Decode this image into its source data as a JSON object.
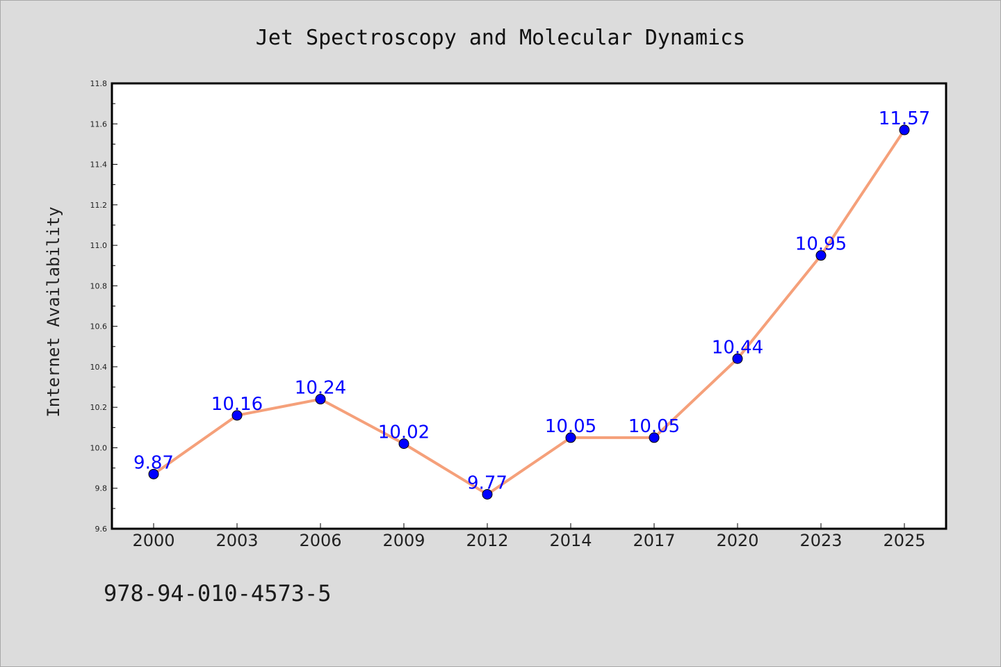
{
  "chart_data": {
    "type": "line",
    "title": "Jet Spectroscopy and Molecular Dynamics",
    "xlabel": "",
    "ylabel": "Internet Availability",
    "categories": [
      "2000",
      "2003",
      "2006",
      "2009",
      "2012",
      "2014",
      "2017",
      "2020",
      "2023",
      "2025"
    ],
    "series": [
      {
        "values": [
          9.87,
          10.16,
          10.24,
          10.02,
          9.77,
          10.05,
          10.05,
          10.44,
          10.95,
          11.57
        ],
        "line_color": "#f5a07a",
        "marker_color": "#0000ff"
      }
    ],
    "data_labels": [
      "9.87",
      "10.16",
      "10.24",
      "10.02",
      "9.77",
      "10.05",
      "10.05",
      "10.44",
      "10.95",
      "11.57"
    ],
    "ylim": [
      9.6,
      11.8
    ],
    "yticks": [
      "9.6",
      "9.8",
      "10.0",
      "10.2",
      "10.4",
      "10.6",
      "10.8",
      "11.0",
      "11.2",
      "11.4",
      "11.6",
      "11.8"
    ],
    "grid": false,
    "legend": "none"
  },
  "footer": {
    "isbn": "978-94-010-4573-5"
  },
  "colors": {
    "background": "#dcdcdc",
    "plot_area": "#ffffff",
    "line": "#f5a07a",
    "marker": "#0000ff",
    "data_label": "#0000ff"
  }
}
